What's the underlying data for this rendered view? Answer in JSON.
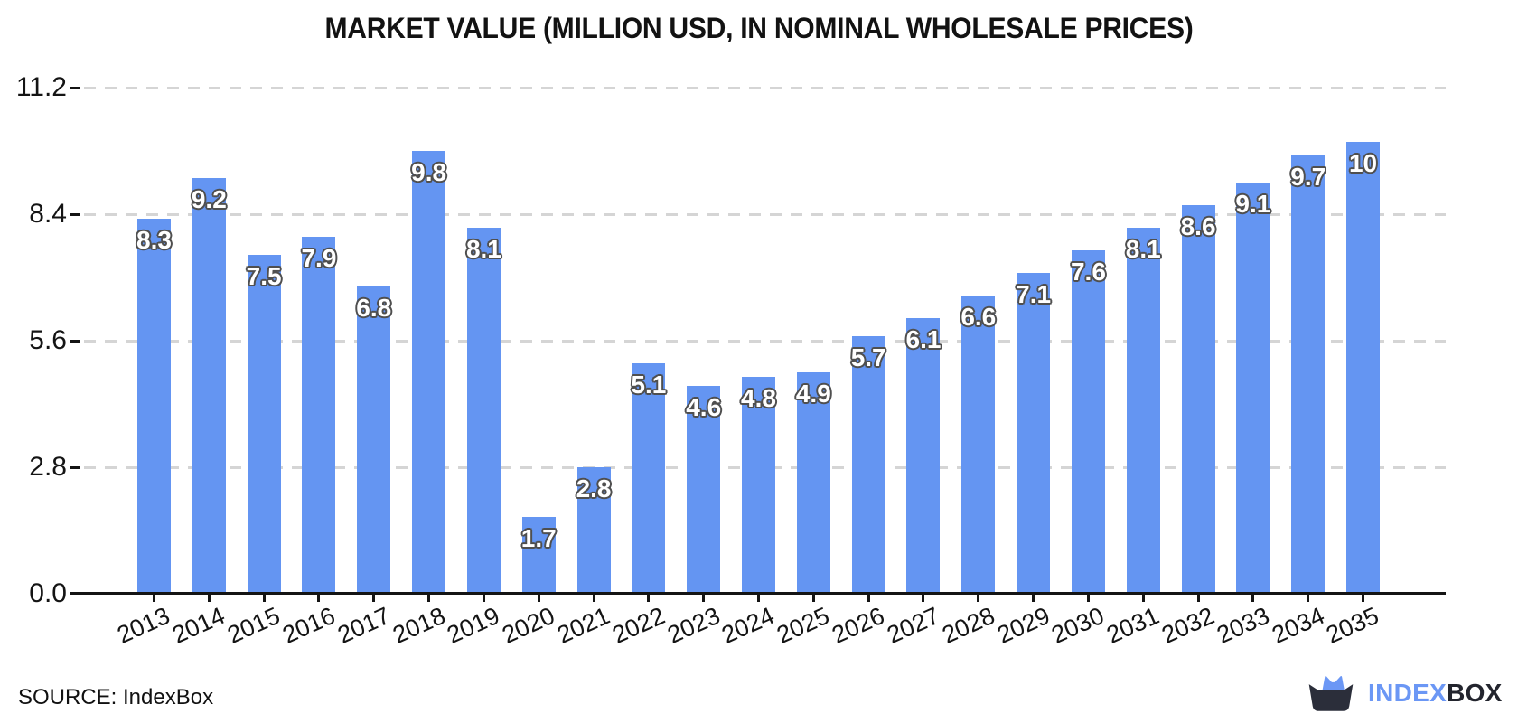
{
  "title": "MARKET VALUE (MILLION USD, IN NOMINAL WHOLESALE PRICES)",
  "source": {
    "label": "SOURCE: IndexBox"
  },
  "logo": {
    "text_primary": "INDEX",
    "text_secondary": "BOX"
  },
  "colors": {
    "bar": "#6495F2",
    "grid": "#d5d5d5",
    "axis": "#141414",
    "bar_label_fill": "#ffffff",
    "bar_label_outline": "#4f4f4f",
    "logo_blue": "#6b97f5",
    "logo_dark": "#2b2e3a"
  },
  "chart_data": {
    "type": "bar",
    "title": "MARKET VALUE (MILLION USD, IN NOMINAL WHOLESALE PRICES)",
    "categories": [
      "2013",
      "2014",
      "2015",
      "2016",
      "2017",
      "2018",
      "2019",
      "2020",
      "2021",
      "2022",
      "2023",
      "2024",
      "2025",
      "2026",
      "2027",
      "2028",
      "2029",
      "2030",
      "2031",
      "2032",
      "2033",
      "2034",
      "2035"
    ],
    "values": [
      8.3,
      9.2,
      7.5,
      7.9,
      6.8,
      9.8,
      8.1,
      1.7,
      2.8,
      5.1,
      4.6,
      4.8,
      4.9,
      5.7,
      6.1,
      6.6,
      7.1,
      7.6,
      8.1,
      8.6,
      9.1,
      9.7,
      10
    ],
    "bar_labels": [
      "8.3",
      "9.2",
      "7.5",
      "7.9",
      "6.8",
      "9.8",
      "8.1",
      "1.7",
      "2.8",
      "5.1",
      "4.6",
      "4.8",
      "4.9",
      "5.7",
      "6.1",
      "6.6",
      "7.1",
      "7.6",
      "8.1",
      "8.6",
      "9.1",
      "9.7",
      "10"
    ],
    "xlabel": "",
    "ylabel": "",
    "ylim": [
      0,
      11.2
    ],
    "yticks": [
      0.0,
      2.8,
      5.6,
      8.4,
      11.2
    ],
    "ytick_labels": [
      "0.0",
      "2.8",
      "5.6",
      "8.4",
      "11.2"
    ],
    "grid": "horizontal dashed",
    "legend": "none"
  }
}
